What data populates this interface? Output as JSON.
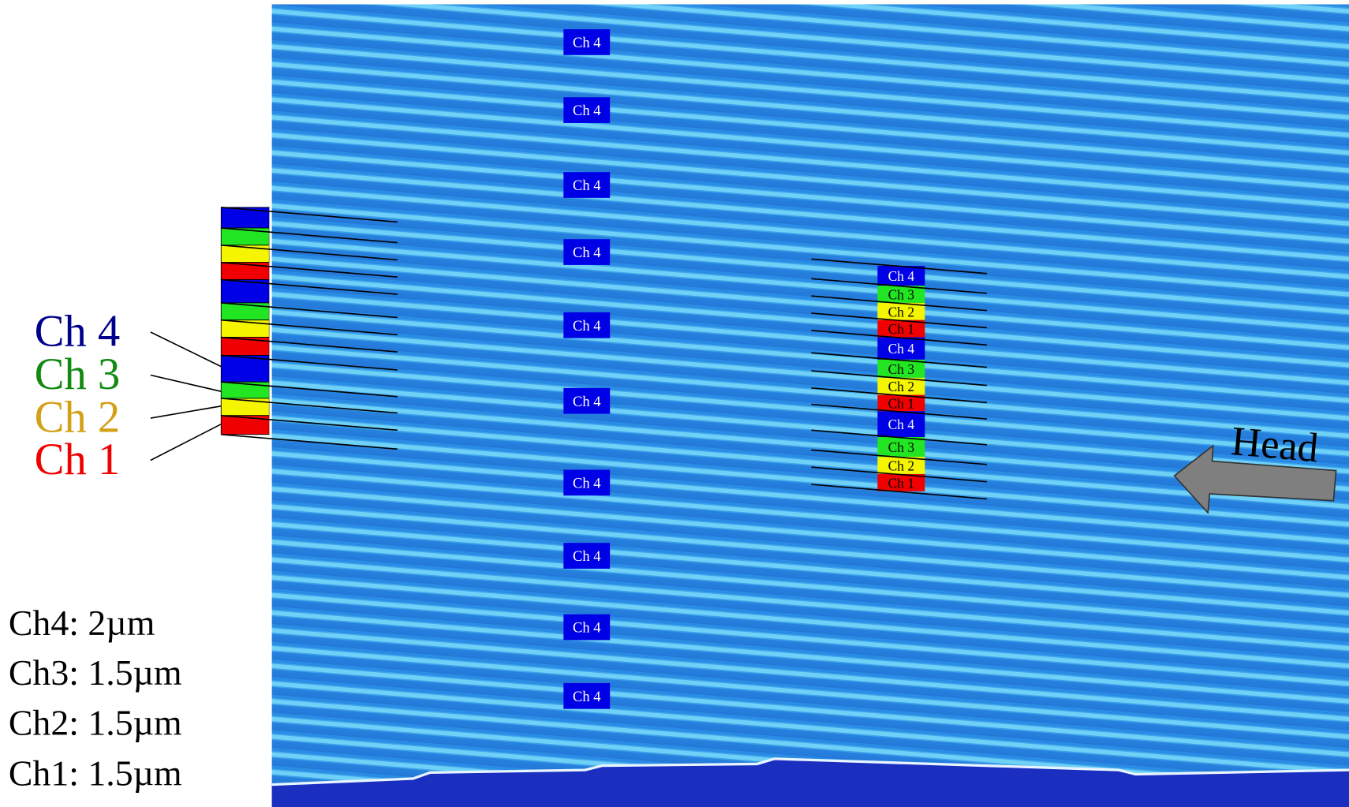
{
  "left_legend": [
    "Ch 4",
    "Ch 3",
    "Ch 2",
    "Ch 1"
  ],
  "widths": [
    "Ch4: 2µm",
    "Ch3: 1.5µm",
    "Ch2: 1.5µm",
    "Ch1: 1.5µm"
  ],
  "column_labels": [
    "Ch 4",
    "Ch 4",
    "Ch 4",
    "Ch 4",
    "Ch 4",
    "Ch 4",
    "Ch 4",
    "Ch 4",
    "Ch 4",
    "Ch 4"
  ],
  "stack_labels": [
    "Ch 4",
    "Ch 3",
    "Ch 2",
    "Ch 1",
    "Ch 4",
    "Ch 3",
    "Ch 2",
    "Ch 1",
    "Ch 4",
    "Ch 3",
    "Ch 2",
    "Ch 1"
  ],
  "head_label": "Head"
}
